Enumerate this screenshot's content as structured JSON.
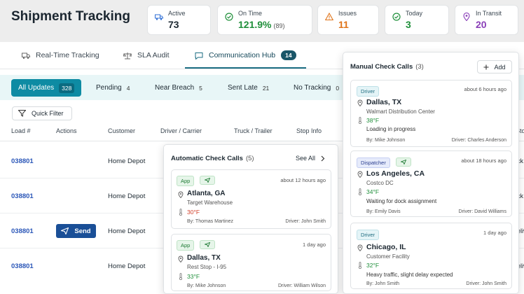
{
  "header": {
    "title": "Shipment Tracking",
    "stats": [
      {
        "label": "Active",
        "value": "73",
        "sub": "",
        "color": "#1e2a33",
        "icon": "truck-icon"
      },
      {
        "label": "On Time",
        "value": "121.9%",
        "sub": "(89)",
        "color": "#1f8f3a",
        "icon": "check-circle-icon"
      },
      {
        "label": "Issues",
        "value": "11",
        "sub": "",
        "color": "#e0741a",
        "icon": "warning-icon"
      },
      {
        "label": "Today",
        "value": "3",
        "sub": "",
        "color": "#1f8f3a",
        "icon": "check-circle-icon"
      },
      {
        "label": "In Transit",
        "value": "20",
        "sub": "",
        "color": "#8a3fb8",
        "icon": "location-pin-icon"
      }
    ]
  },
  "tabs": [
    {
      "label": "Real-Time Tracking",
      "icon": "truck-icon"
    },
    {
      "label": "SLA Audit",
      "icon": "scale-icon"
    },
    {
      "label": "Communication Hub",
      "icon": "chat-icon",
      "badge": "14",
      "active": true
    }
  ],
  "filters": [
    {
      "label": "All Updates",
      "count": "328",
      "active": true
    },
    {
      "label": "Pending",
      "count": "4"
    },
    {
      "label": "Near Breach",
      "count": "5"
    },
    {
      "label": "Sent Late",
      "count": "21"
    },
    {
      "label": "No Tracking",
      "count": "0"
    }
  ],
  "quick_filter": {
    "label": "Quick Filter"
  },
  "table": {
    "headers": [
      "Load #",
      "Actions",
      "Customer",
      "Driver / Carrier",
      "Truck / Trailer",
      "Stop Info",
      "Sto"
    ],
    "rows": [
      {
        "load": "038801",
        "customer": "Home Depot",
        "n1": "N",
        "n2": "K",
        "right": "ck"
      },
      {
        "load": "038801",
        "customer": "Home Depot",
        "n1": "N",
        "n2": "K",
        "right": "ck"
      },
      {
        "load": "038801",
        "customer": "Home Depot",
        "n1": "N",
        "n2": "K",
        "right": "eliv",
        "send": "Send"
      },
      {
        "load": "038801",
        "customer": "Home Depot",
        "n1": "N",
        "n2": "K",
        "right": "eliv"
      }
    ]
  },
  "auto_panel": {
    "title": "Automatic Check Calls",
    "count": "(5)",
    "see_all": "See All",
    "cards": [
      {
        "badge": "App",
        "time": "about 12 hours ago",
        "city": "Atlanta, GA",
        "place": "Target Warehouse",
        "temp": "30°F",
        "hot": true,
        "by": "By: Thomas Martinez",
        "driver": "Driver: John Smith"
      },
      {
        "badge": "App",
        "time": "1 day ago",
        "city": "Dallas, TX",
        "place": "Rest Stop - I-95",
        "temp": "33°F",
        "hot": false,
        "by": "By: Mike Johnson",
        "driver": "Driver: William Wilson"
      }
    ]
  },
  "manual_panel": {
    "title": "Manual Check Calls",
    "count": "(3)",
    "add_label": "Add",
    "cards": [
      {
        "badge": "Driver",
        "badge_type": "driver",
        "time": "about 6 hours ago",
        "city": "Dallas, TX",
        "place": "Walmart Distribution Center",
        "temp": "38°F",
        "note": "Loading in progress",
        "by": "By: Mike Johnson",
        "driver": "Driver: Charles Anderson"
      },
      {
        "badge": "Dispatcher",
        "badge_type": "dispatcher",
        "time": "about 18 hours ago",
        "city": "Los Angeles, CA",
        "place": "Costco DC",
        "temp": "34°F",
        "note": "Waiting for dock assignment",
        "by": "By: Emily Davis",
        "driver": "Driver: David Williams"
      },
      {
        "badge": "Driver",
        "badge_type": "driver",
        "time": "1 day ago",
        "city": "Chicago, IL",
        "place": "Customer Facility",
        "temp": "32°F",
        "note": "Heavy traffic, slight delay expected",
        "by": "By: John Smith",
        "driver": "Driver: John Smith"
      }
    ]
  }
}
